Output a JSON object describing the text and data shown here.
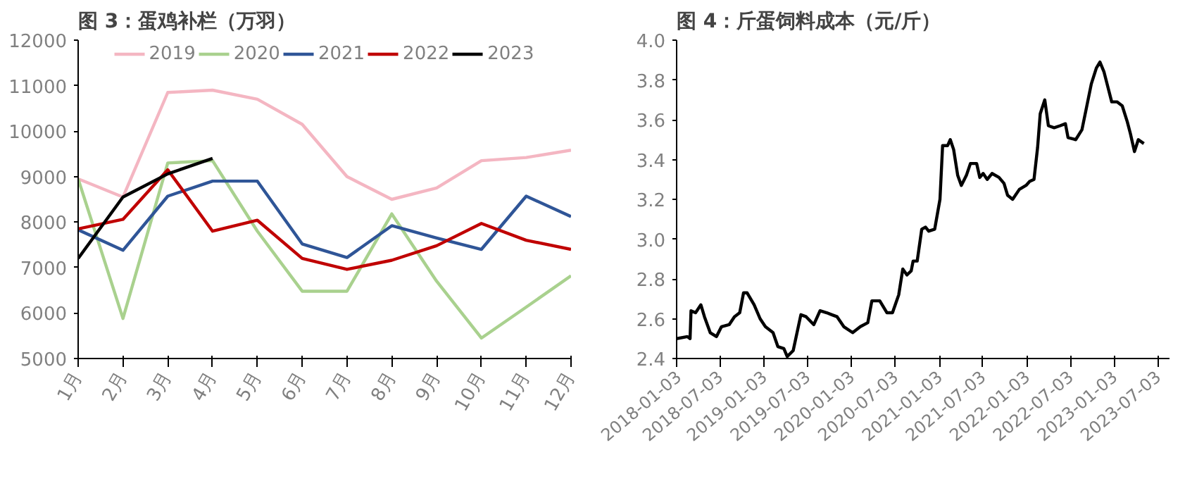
{
  "chart_data": [
    {
      "type": "line",
      "title": "图 3：蛋鸡补栏（万羽）",
      "categories": [
        "1月",
        "2月",
        "3月",
        "4月",
        "5月",
        "6月",
        "7月",
        "8月",
        "9月",
        "10月",
        "11月",
        "12月"
      ],
      "series": [
        {
          "name": "2019",
          "color": "#f4b6c2",
          "values": [
            8950,
            8550,
            10850,
            10900,
            10700,
            10150,
            9000,
            8500,
            8750,
            9350,
            9420,
            9580
          ]
        },
        {
          "name": "2020",
          "color": "#a9d18e",
          "values": [
            8950,
            5880,
            9300,
            9350,
            7800,
            6480,
            6480,
            8180,
            6700,
            5450,
            6130,
            6820
          ]
        },
        {
          "name": "2021",
          "color": "#2f5597",
          "values": [
            7830,
            7380,
            8570,
            8900,
            8900,
            7520,
            7220,
            7920,
            7650,
            7400,
            8570,
            8120
          ]
        },
        {
          "name": "2022",
          "color": "#c00000",
          "values": [
            7850,
            8060,
            9150,
            7800,
            8040,
            7200,
            6960,
            7160,
            7480,
            7970,
            7600,
            7400
          ]
        },
        {
          "name": "2023",
          "color": "#000000",
          "values": [
            7200,
            8550,
            9060,
            9400,
            null,
            null,
            null,
            null,
            null,
            null,
            null,
            null
          ]
        }
      ],
      "ylim": [
        5000,
        12000
      ],
      "yticks": [
        5000,
        6000,
        7000,
        8000,
        9000,
        10000,
        11000,
        12000
      ],
      "grid": false,
      "legend": "top"
    },
    {
      "type": "line",
      "title": "图 4：斤蛋饲料成本（元/斤）",
      "x": [
        "2018-01-03",
        "2018-02-17",
        "2018-02-28",
        "2018-03-04",
        "2018-03-23",
        "2018-04-14",
        "2018-04-29",
        "2018-05-23",
        "2018-06-18",
        "2018-07-09",
        "2018-08-10",
        "2018-09-01",
        "2018-09-23",
        "2018-10-09",
        "2018-10-24",
        "2018-11-22",
        "2018-12-17",
        "2019-01-08",
        "2019-02-09",
        "2019-03-01",
        "2019-03-26",
        "2019-04-09",
        "2019-05-04",
        "2019-06-05",
        "2019-06-27",
        "2019-07-29",
        "2019-08-24",
        "2019-09-21",
        "2019-10-12",
        "2019-11-03",
        "2019-12-01",
        "2020-01-07",
        "2020-02-08",
        "2020-03-10",
        "2020-03-27",
        "2020-04-29",
        "2020-05-29",
        "2020-06-21",
        "2020-07-17",
        "2020-08-03",
        "2020-08-20",
        "2020-09-07",
        "2020-09-15",
        "2020-10-02",
        "2020-10-21",
        "2020-11-06",
        "2020-11-19",
        "2020-12-14",
        "2021-01-05",
        "2021-01-16",
        "2021-02-06",
        "2021-02-17",
        "2021-03-03",
        "2021-03-20",
        "2021-04-04",
        "2021-04-25",
        "2021-05-12",
        "2021-06-07",
        "2021-06-20",
        "2021-07-04",
        "2021-07-21",
        "2021-08-10",
        "2021-09-08",
        "2021-09-29",
        "2021-10-14",
        "2021-11-04",
        "2021-12-02",
        "2021-12-30",
        "2022-01-14",
        "2022-02-01",
        "2022-02-16",
        "2022-02-27",
        "2022-03-18",
        "2022-04-02",
        "2022-04-26",
        "2022-05-21",
        "2022-06-12",
        "2022-06-23",
        "2022-07-25",
        "2022-08-20",
        "2022-09-06",
        "2022-09-28",
        "2022-10-19",
        "2022-11-03",
        "2022-11-20",
        "2022-12-07",
        "2022-12-22",
        "2023-01-13",
        "2023-02-04",
        "2023-02-25",
        "2023-03-10",
        "2023-03-27",
        "2023-04-12",
        "2023-05-05"
      ],
      "series": [
        {
          "color": "#000000",
          "values": [
            2.5,
            2.51,
            2.5,
            2.64,
            2.63,
            2.67,
            2.61,
            2.53,
            2.51,
            2.56,
            2.57,
            2.61,
            2.63,
            2.73,
            2.73,
            2.67,
            2.6,
            2.56,
            2.53,
            2.46,
            2.45,
            2.41,
            2.44,
            2.62,
            2.61,
            2.57,
            2.64,
            2.63,
            2.62,
            2.61,
            2.56,
            2.53,
            2.56,
            2.58,
            2.69,
            2.69,
            2.63,
            2.63,
            2.72,
            2.85,
            2.82,
            2.84,
            2.89,
            2.89,
            3.05,
            3.06,
            3.04,
            3.05,
            3.2,
            3.47,
            3.47,
            3.5,
            3.45,
            3.32,
            3.27,
            3.32,
            3.38,
            3.38,
            3.31,
            3.33,
            3.3,
            3.33,
            3.31,
            3.28,
            3.22,
            3.2,
            3.25,
            3.27,
            3.29,
            3.3,
            3.46,
            3.63,
            3.7,
            3.57,
            3.56,
            3.57,
            3.58,
            3.51,
            3.5,
            3.55,
            3.65,
            3.78,
            3.86,
            3.89,
            3.84,
            3.76,
            3.69,
            3.69,
            3.67,
            3.59,
            3.53,
            3.44,
            3.5,
            3.48
          ]
        }
      ],
      "xlim": [
        "2018-01-03",
        "2023-08-20"
      ],
      "xticks": [
        "2018-01-03",
        "2018-07-03",
        "2019-01-03",
        "2019-07-03",
        "2020-01-03",
        "2020-07-03",
        "2021-01-03",
        "2021-07-03",
        "2022-01-03",
        "2022-07-03",
        "2023-01-03",
        "2023-07-03"
      ],
      "ylim": [
        2.4,
        4.0
      ],
      "yticks": [
        2.4,
        2.6,
        2.8,
        {
          "value": 3.0,
          "label": "3.0"
        },
        3.2,
        3.4,
        3.6,
        3.8,
        {
          "value": 4.0,
          "label": "4.0"
        }
      ],
      "grid": false
    }
  ]
}
